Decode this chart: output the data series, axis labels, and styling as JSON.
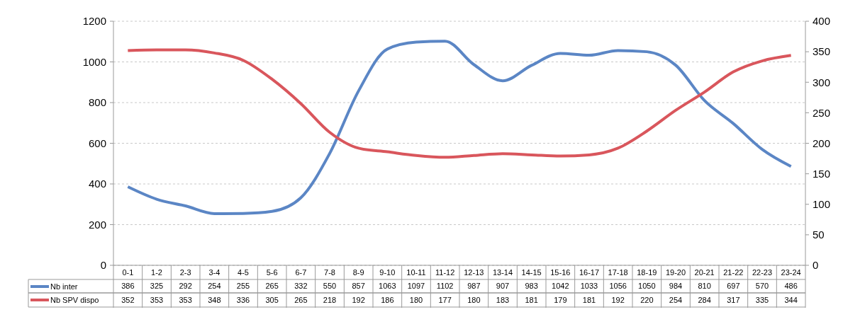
{
  "chart_data": {
    "type": "line",
    "categories": [
      "0-1",
      "1-2",
      "2-3",
      "3-4",
      "4-5",
      "5-6",
      "6-7",
      "7-8",
      "8-9",
      "9-10",
      "10-11",
      "11-12",
      "12-13",
      "13-14",
      "14-15",
      "15-16",
      "16-17",
      "17-18",
      "18-19",
      "19-20",
      "20-21",
      "21-22",
      "22-23",
      "23-24"
    ],
    "series": [
      {
        "name": "Nb inter",
        "color": "#5b86c5",
        "values": [
          386,
          325,
          292,
          254,
          255,
          265,
          332,
          550,
          857,
          1063,
          1097,
          1102,
          987,
          907,
          983,
          1042,
          1033,
          1056,
          1050,
          984,
          810,
          697,
          570,
          486
        ]
      },
      {
        "name": "Nb SPV dispo",
        "color": "#d9565c",
        "axis": "y2",
        "values": [
          352,
          353,
          353,
          348,
          336,
          305,
          265,
          218,
          192,
          186,
          180,
          177,
          180,
          183,
          181,
          179,
          181,
          192,
          220,
          254,
          284,
          317,
          335,
          344
        ]
      }
    ],
    "ylim": [
      0,
      1200
    ],
    "yticks": [
      0,
      200,
      400,
      600,
      800,
      1000,
      1200
    ],
    "y2lim": [
      0,
      400
    ],
    "y2ticks": [
      0,
      50,
      100,
      150,
      200,
      250,
      300,
      350,
      400
    ],
    "grid": "y",
    "legend": "bottom left",
    "data_labels": true,
    "marker": "none",
    "line_style": "solid"
  }
}
